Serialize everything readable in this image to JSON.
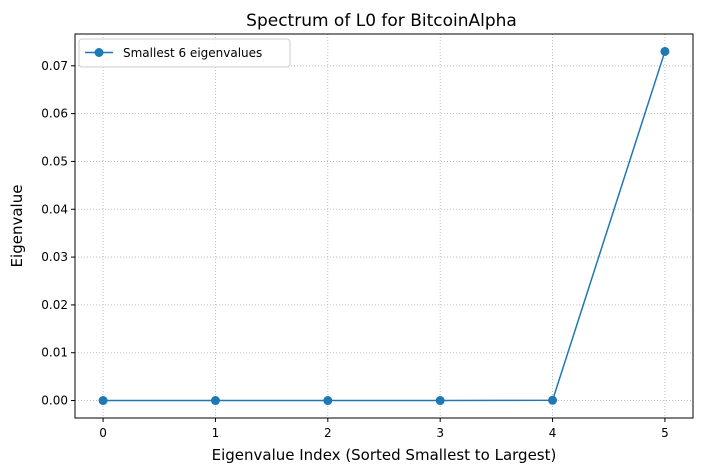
{
  "chart_data": {
    "type": "line",
    "title": "Spectrum of L0 for BitcoinAlpha",
    "xlabel": "Eigenvalue Index (Sorted Smallest to Largest)",
    "ylabel": "Eigenvalue",
    "x": [
      0,
      1,
      2,
      3,
      4,
      5
    ],
    "series": [
      {
        "name": "Smallest 6 eigenvalues",
        "values": [
          0.0,
          0.0,
          0.0,
          0.0,
          5e-05,
          0.073
        ]
      }
    ],
    "xticks": [
      0,
      1,
      2,
      3,
      4,
      5
    ],
    "yticks": [
      0.0,
      0.01,
      0.02,
      0.03,
      0.04,
      0.05,
      0.06,
      0.07
    ],
    "ytick_labels": [
      "0.00",
      "0.01",
      "0.02",
      "0.03",
      "0.04",
      "0.05",
      "0.06",
      "0.07"
    ],
    "xlim": [
      -0.25,
      5.25
    ],
    "ylim": [
      -0.00365,
      0.07665
    ],
    "grid": true,
    "grid_style": "dotted",
    "legend_position": "top-left",
    "line_color": "#1f77b4",
    "marker": "circle"
  }
}
